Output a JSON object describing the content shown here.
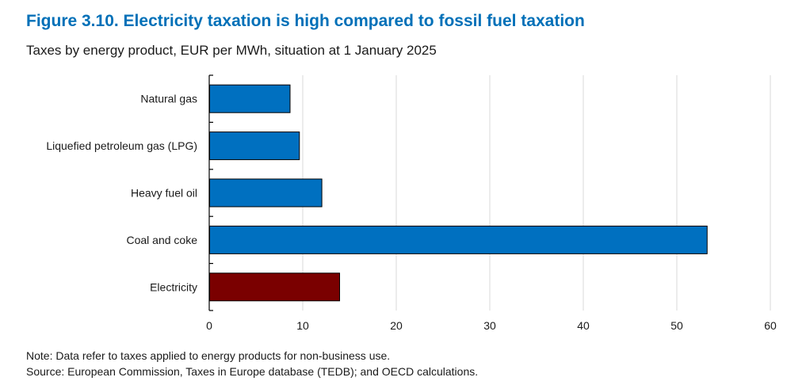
{
  "figure": {
    "title": "Figure 3.10. Electricity taxation is high compared to fossil fuel taxation",
    "subtitle": "Taxes by energy product, EUR per MWh, situation at 1 January 2025"
  },
  "notes": {
    "note": "Note: Data refer to taxes applied to energy products for non-business use.",
    "source": "Source: European Commission, Taxes in Europe database (TEDB); and OECD calculations."
  },
  "colors": {
    "blue_bar": "#0070c0",
    "highlight_bar": "#7a0000",
    "title": "#0070b8",
    "grid": "#d9d9d9",
    "axis": "#000000"
  },
  "chart_data": {
    "type": "bar",
    "orientation": "horizontal",
    "categories": [
      "Natural gas",
      "Liquefied petroleum gas (LPG)",
      "Heavy fuel oil",
      "Coal and coke",
      "Electricity"
    ],
    "values": [
      8.6,
      9.6,
      12.0,
      53.2,
      13.9
    ],
    "highlight": [
      "Electricity"
    ],
    "xlim": [
      0,
      60
    ],
    "xticks": [
      0,
      10,
      20,
      30,
      40,
      50,
      60
    ],
    "grid": "vertical"
  }
}
